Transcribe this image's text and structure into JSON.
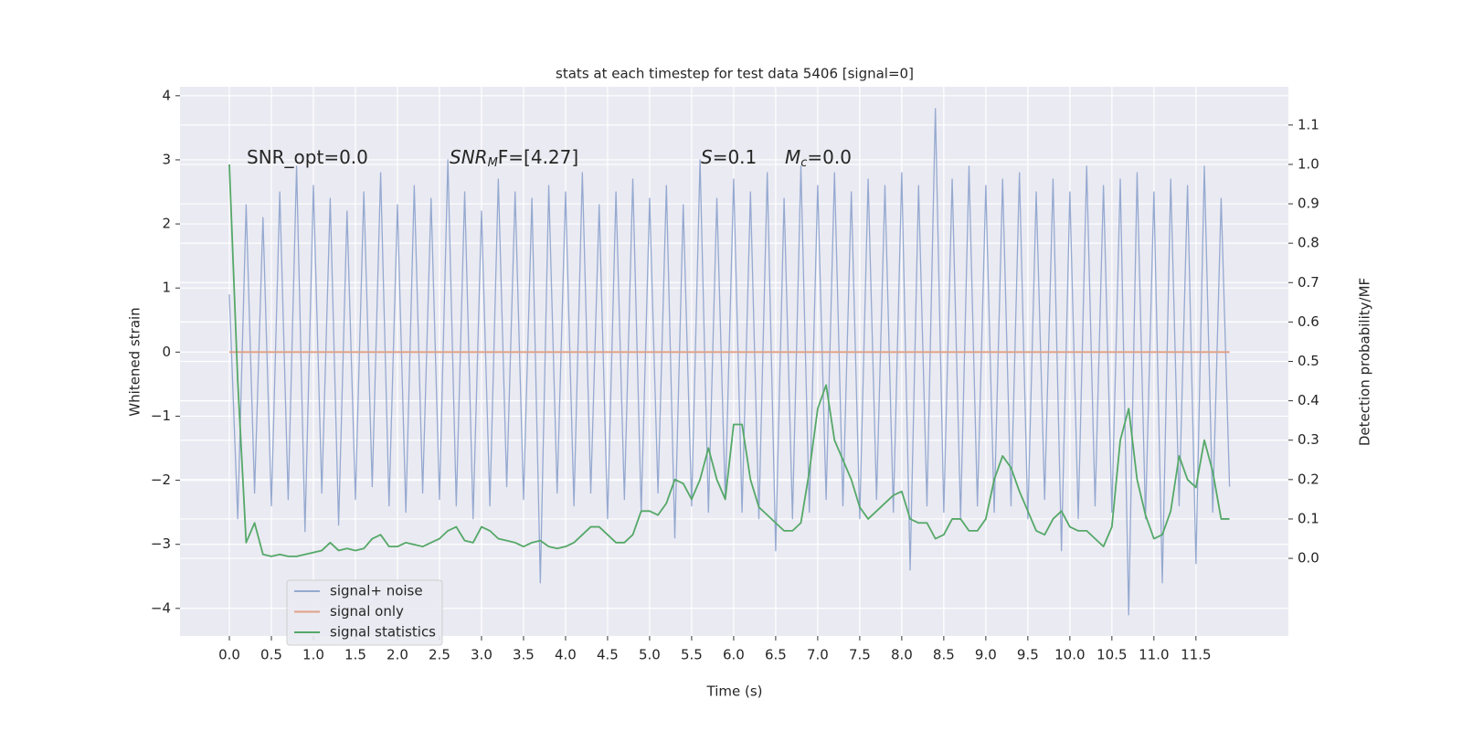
{
  "chart_data": {
    "type": "line",
    "title": "stats at each timestep for test data 5406 [signal=0]",
    "xlabel": "Time (s)",
    "ylabel": "Whitened strain",
    "y2label": "Detection probability/MF",
    "background": "#eaeaf2",
    "grid": true,
    "legend": "lower left",
    "xlim": [
      -0.587,
      12.6
    ],
    "ylim": [
      -4.43,
      4.14
    ],
    "y2lim": [
      -0.197,
      1.197
    ],
    "xticks": [
      {
        "value": 0,
        "label": "0.0"
      },
      0.5,
      {
        "value": 1,
        "label": "1.0"
      },
      1.5,
      {
        "value": 2,
        "label": "2.0"
      },
      2.5,
      {
        "value": 3,
        "label": "3.0"
      },
      3.5,
      {
        "value": 4,
        "label": "4.0"
      },
      4.5,
      {
        "value": 5,
        "label": "5.0"
      },
      5.5,
      {
        "value": 6,
        "label": "6.0"
      },
      6.5,
      {
        "value": 7,
        "label": "7.0"
      },
      7.5,
      {
        "value": 8,
        "label": "8.0"
      },
      8.5,
      {
        "value": 9,
        "label": "9.0"
      },
      9.5,
      {
        "value": 10,
        "label": "10.0"
      },
      10.5,
      {
        "value": 11,
        "label": "11.0"
      },
      11.5
    ],
    "yticks": [
      {
        "value": -4,
        "label": "−4"
      },
      {
        "value": -3,
        "label": "−3"
      },
      {
        "value": -2,
        "label": "−2"
      },
      {
        "value": -1,
        "label": "−1"
      },
      0,
      1,
      2,
      3,
      4
    ],
    "y2ticks": [
      {
        "value": 0,
        "label": "0.0"
      },
      0.1,
      0.2,
      0.3,
      0.4,
      0.5,
      0.6,
      0.7,
      0.8,
      0.9,
      {
        "value": 1,
        "label": "1.0"
      },
      1.1
    ],
    "annotations": [
      [
        {
          "text": "SNR_opt=0.0",
          "style": "normal"
        }
      ],
      [
        {
          "text": "SNR",
          "style": "italic"
        },
        {
          "text": "M",
          "style": "sub"
        },
        {
          "text": "F=[4.27]",
          "style": "normal"
        }
      ],
      [
        {
          "text": "S",
          "style": "italic"
        },
        {
          "text": "=0.1",
          "style": "normal"
        }
      ],
      [
        {
          "text": "M",
          "style": "italic"
        },
        {
          "text": "c",
          "style": "sub"
        },
        {
          "text": "=0.0",
          "style": "normal"
        }
      ]
    ],
    "x": [
      0.0,
      0.1,
      0.2,
      0.3,
      0.4,
      0.5,
      0.6,
      0.7,
      0.8,
      0.9,
      1.0,
      1.1,
      1.2,
      1.3,
      1.4,
      1.5,
      1.6,
      1.7,
      1.8,
      1.9,
      2.0,
      2.1,
      2.2,
      2.3,
      2.4,
      2.5,
      2.6,
      2.7,
      2.8,
      2.9,
      3.0,
      3.1,
      3.2,
      3.3,
      3.4,
      3.5,
      3.6,
      3.7,
      3.8,
      3.9,
      4.0,
      4.1,
      4.2,
      4.3,
      4.4,
      4.5,
      4.6,
      4.7,
      4.8,
      4.9,
      5.0,
      5.1,
      5.2,
      5.3,
      5.4,
      5.5,
      5.6,
      5.7,
      5.8,
      5.9,
      6.0,
      6.1,
      6.2,
      6.3,
      6.4,
      6.5,
      6.6,
      6.7,
      6.8,
      6.9,
      7.0,
      7.1,
      7.2,
      7.3,
      7.4,
      7.5,
      7.6,
      7.7,
      7.8,
      7.9,
      8.0,
      8.1,
      8.2,
      8.3,
      8.4,
      8.5,
      8.6,
      8.7,
      8.8,
      8.9,
      9.0,
      9.1,
      9.2,
      9.3,
      9.4,
      9.5,
      9.6,
      9.7,
      9.8,
      9.9,
      10.0,
      10.1,
      10.2,
      10.3,
      10.4,
      10.5,
      10.6,
      10.7,
      10.8,
      10.9,
      11.0,
      11.1,
      11.2,
      11.3,
      11.4,
      11.5,
      11.6,
      11.7,
      11.8,
      11.9
    ],
    "series": [
      {
        "name": "signal+ noise",
        "color": "#95a9d0",
        "axis": "y",
        "values": [
          0.9,
          -2.6,
          2.3,
          -2.2,
          2.1,
          -2.4,
          2.5,
          -2.3,
          2.9,
          -2.8,
          2.6,
          -2.2,
          2.4,
          -2.7,
          2.2,
          -2.3,
          2.5,
          -2.1,
          2.8,
          -2.4,
          2.3,
          -2.5,
          2.6,
          -2.2,
          2.4,
          -2.3,
          3.0,
          -2.4,
          2.5,
          -2.6,
          2.2,
          -2.4,
          2.7,
          -2.1,
          2.5,
          -2.3,
          2.4,
          -3.6,
          2.6,
          -2.2,
          2.5,
          -2.4,
          2.8,
          -2.2,
          2.3,
          -2.6,
          2.5,
          -2.3,
          2.7,
          -2.5,
          2.4,
          -2.2,
          2.6,
          -2.9,
          2.3,
          -2.4,
          3.0,
          -2.5,
          2.4,
          -2.3,
          2.7,
          -2.5,
          2.5,
          -2.6,
          2.8,
          -3.1,
          2.4,
          -2.6,
          2.9,
          -2.5,
          2.6,
          -2.3,
          2.8,
          -2.4,
          2.5,
          -2.6,
          2.7,
          -2.3,
          2.6,
          -2.5,
          2.8,
          -3.4,
          2.6,
          -2.4,
          3.8,
          -2.5,
          2.7,
          -2.6,
          2.9,
          -2.4,
          2.6,
          -2.5,
          2.7,
          -2.4,
          2.8,
          -2.6,
          2.5,
          -2.3,
          2.7,
          -3.1,
          2.5,
          -2.6,
          2.9,
          -2.4,
          2.6,
          -2.5,
          2.7,
          -4.1,
          2.8,
          -2.6,
          2.5,
          -3.6,
          2.7,
          -2.4,
          2.6,
          -3.3,
          2.9,
          -2.5,
          2.4,
          -2.1
        ]
      },
      {
        "name": "signal only",
        "color": "#e0a085",
        "axis": "y",
        "x": [
          0.0,
          11.9
        ],
        "values": [
          0,
          0
        ]
      },
      {
        "name": "signal statistics",
        "color": "#55a868",
        "axis": "y2",
        "values": [
          1.0,
          0.45,
          0.04,
          0.09,
          0.01,
          0.005,
          0.01,
          0.005,
          0.005,
          0.01,
          0.015,
          0.02,
          0.04,
          0.02,
          0.025,
          0.02,
          0.025,
          0.05,
          0.06,
          0.03,
          0.03,
          0.04,
          0.035,
          0.03,
          0.04,
          0.05,
          0.07,
          0.08,
          0.045,
          0.04,
          0.08,
          0.07,
          0.05,
          0.045,
          0.04,
          0.03,
          0.04,
          0.045,
          0.03,
          0.025,
          0.03,
          0.04,
          0.06,
          0.08,
          0.08,
          0.06,
          0.04,
          0.04,
          0.06,
          0.12,
          0.12,
          0.11,
          0.14,
          0.2,
          0.19,
          0.15,
          0.2,
          0.28,
          0.2,
          0.15,
          0.34,
          0.34,
          0.2,
          0.13,
          0.11,
          0.09,
          0.07,
          0.07,
          0.09,
          0.22,
          0.38,
          0.44,
          0.3,
          0.25,
          0.2,
          0.13,
          0.1,
          0.12,
          0.14,
          0.16,
          0.17,
          0.1,
          0.09,
          0.09,
          0.05,
          0.06,
          0.1,
          0.1,
          0.07,
          0.07,
          0.1,
          0.2,
          0.26,
          0.23,
          0.17,
          0.12,
          0.07,
          0.06,
          0.1,
          0.12,
          0.08,
          0.07,
          0.07,
          0.05,
          0.03,
          0.08,
          0.3,
          0.38,
          0.2,
          0.11,
          0.05,
          0.06,
          0.12,
          0.26,
          0.2,
          0.18,
          0.3,
          0.22,
          0.1,
          0.1
        ]
      }
    ]
  }
}
